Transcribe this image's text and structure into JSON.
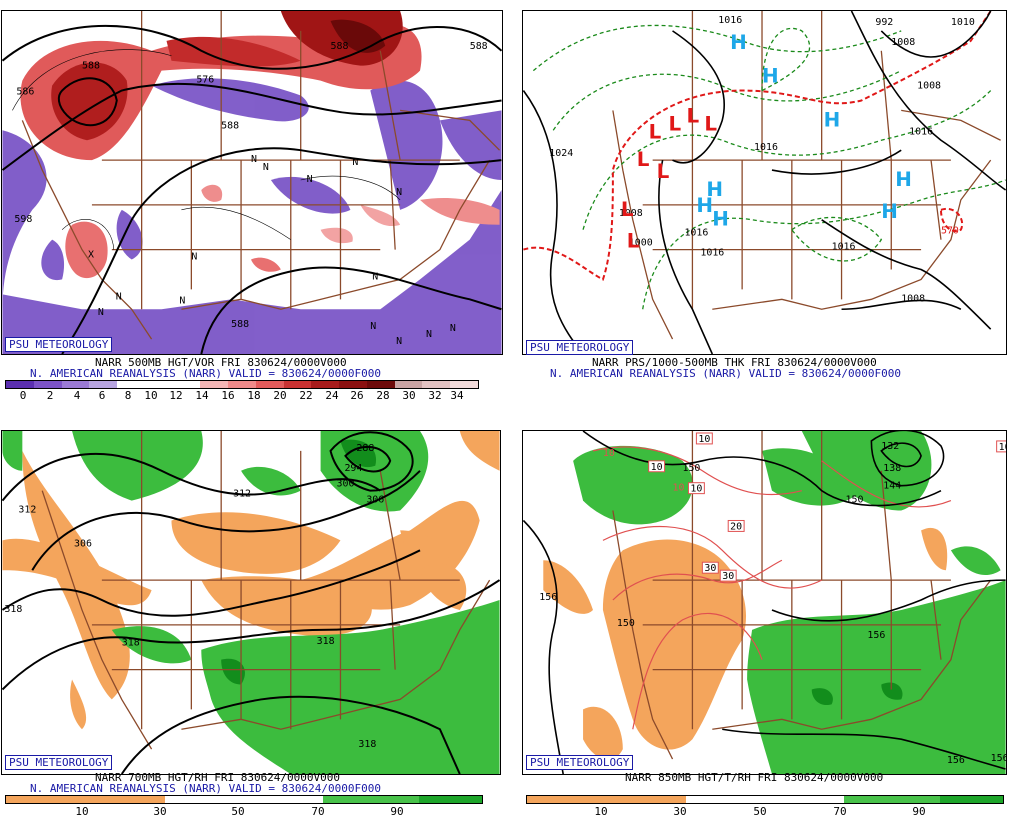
{
  "colors": {
    "vorticity_palette": [
      "#5b2fb0",
      "#7c53c6",
      "#9a7ad4",
      "#b7a4e0",
      "#ffffff",
      "#ffffff",
      "#ffffff",
      "#f4b6b6",
      "#ef8a8a",
      "#e25b5b",
      "#c93232",
      "#a81c1c",
      "#8b1111",
      "#6d0a0a",
      "#c9a3a3",
      "#e3c2c2",
      "#f2dada"
    ],
    "rh_palette": [
      "#f4a55c",
      "#f6b27a",
      "#ffffff",
      "#ffffff",
      "#48c24a",
      "#1da52a"
    ],
    "border": "#8b4a2b",
    "contour": "#000000",
    "high_symbol": "#1ea7e8",
    "low_symbol": "#e01818",
    "thickness_dashed": "#1a8a1a",
    "thickness_red": "#e01818",
    "temp_red": "#e05050"
  },
  "panels": [
    {
      "id": "p500",
      "psu_label": "PSU METEOROLOGY",
      "caption_line1": "NARR 500MB HGT/VOR FRI 830624/0000V000",
      "caption_line2": "N. AMERICAN REANALYSIS (NARR) VALID = 830624/0000F000",
      "colorbar_ticks": [
        "0",
        "2",
        "4",
        "6",
        "8",
        "10",
        "12",
        "14",
        "16",
        "18",
        "20",
        "22",
        "24",
        "26",
        "28",
        "30",
        "32",
        "34"
      ],
      "contour_labels": [
        "588",
        "588",
        "588",
        "586",
        "598",
        "588",
        "576",
        "588"
      ],
      "marker_labels": [
        "N",
        "N",
        "N",
        "N",
        "N",
        "N",
        "N",
        "N",
        "N",
        "N",
        "N",
        "N",
        "N",
        "N",
        "X"
      ]
    },
    {
      "id": "pthk",
      "psu_label": "PSU METEOROLOGY",
      "caption_line1": "NARR PRS/1000-500MB THK FRI 830624/0000V000",
      "caption_line2": "N. AMERICAN REANALYSIS (NARR) VALID = 830624/0000F000",
      "contour_labels": [
        "1016",
        "992",
        "1008",
        "1008",
        "1016",
        "1016",
        "1024",
        "1008",
        "1016",
        "1016",
        "1016",
        "1000",
        "1008",
        "1010",
        "570"
      ]
    },
    {
      "id": "p700",
      "psu_label": "PSU METEOROLOGY",
      "caption_line1": "NARR 700MB HGT/RH FRI 830624/0000V000",
      "caption_line2": "N. AMERICAN REANALYSIS (NARR) VALID = 830624/0000F000",
      "colorbar_ticks": [
        "10",
        "30",
        "50",
        "70",
        "90"
      ],
      "contour_labels": [
        "288",
        "294",
        "300",
        "306",
        "312",
        "312",
        "306",
        "318",
        "318",
        "318",
        "318"
      ]
    },
    {
      "id": "p850",
      "psu_label": "PSU METEOROLOGY",
      "caption_line1": "NARR 850MB HGT/T/RH FRI 830624/0000V000",
      "caption_line2": "",
      "colorbar_ticks": [
        "10",
        "30",
        "50",
        "70",
        "90"
      ],
      "contour_labels": [
        "132",
        "138",
        "144",
        "150",
        "150",
        "156",
        "150",
        "156",
        "156",
        "156"
      ],
      "temp_box_labels": [
        "10",
        "10",
        "10",
        "10",
        "20",
        "30",
        "30",
        "10",
        "10"
      ]
    }
  ]
}
